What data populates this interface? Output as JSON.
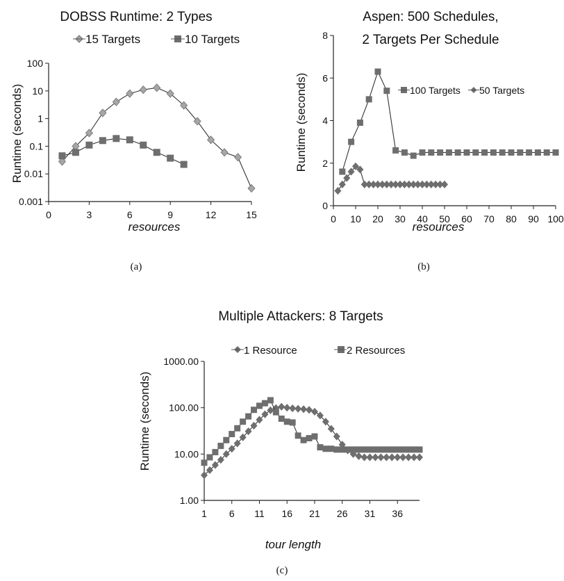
{
  "chart_data": [
    {
      "id": "a",
      "type": "line",
      "title": "DOBSS Runtime: 2 Types",
      "xlabel": "resources",
      "ylabel": "Runtime (seconds)",
      "caption": "(a)",
      "yscale": "log",
      "xlim": [
        0,
        15
      ],
      "ylim": [
        0.001,
        100
      ],
      "xticks": [
        "0",
        "3",
        "6",
        "9",
        "12",
        "15"
      ],
      "yticks": [
        "0.001",
        "0.01",
        "0.1",
        "1",
        "10",
        "100"
      ],
      "legend_position": "top",
      "series": [
        {
          "name": "15 Targets",
          "marker": "diamond",
          "color": "#a6a6a6",
          "x": [
            1,
            2,
            3,
            4,
            5,
            6,
            7,
            8,
            9,
            10,
            11,
            12,
            13,
            14,
            15
          ],
          "y": [
            0.028,
            0.1,
            0.3,
            1.6,
            4,
            8,
            11,
            13,
            8,
            3,
            0.8,
            0.17,
            0.06,
            0.04,
            0.003
          ]
        },
        {
          "name": "10 Targets",
          "marker": "square",
          "color": "#6e6e6e",
          "x": [
            1,
            2,
            3,
            4,
            5,
            6,
            7,
            8,
            9,
            10
          ],
          "y": [
            0.045,
            0.06,
            0.11,
            0.16,
            0.19,
            0.17,
            0.11,
            0.06,
            0.037,
            0.022
          ]
        }
      ]
    },
    {
      "id": "b",
      "type": "line",
      "title": "Aspen: 500 Schedules,",
      "title2": "2 Targets Per Schedule",
      "xlabel": "resources",
      "ylabel": "Runtime  (seconds)",
      "caption": "(b)",
      "yscale": "linear",
      "xlim": [
        0,
        100
      ],
      "ylim": [
        0,
        8
      ],
      "xticks": [
        "0",
        "10",
        "20",
        "30",
        "40",
        "50",
        "60",
        "70",
        "80",
        "90",
        "100"
      ],
      "yticks": [
        "0",
        "2",
        "4",
        "6",
        "8"
      ],
      "legend_position": "center-right",
      "series": [
        {
          "name": "100 Targets",
          "marker": "square",
          "color": "#6e6e6e",
          "x": [
            4,
            8,
            12,
            16,
            20,
            24,
            28,
            32,
            36,
            40,
            44,
            48,
            52,
            56,
            60,
            64,
            68,
            72,
            76,
            80,
            84,
            88,
            92,
            96,
            100
          ],
          "y": [
            1.6,
            3.0,
            3.9,
            5.0,
            6.3,
            5.4,
            2.6,
            2.5,
            2.35,
            2.5,
            2.5,
            2.5,
            2.5,
            2.5,
            2.5,
            2.5,
            2.5,
            2.5,
            2.5,
            2.5,
            2.5,
            2.5,
            2.5,
            2.5,
            2.5
          ]
        },
        {
          "name": "50 Targets",
          "marker": "diamond",
          "color": "#6e6e6e",
          "x": [
            2,
            4,
            6,
            8,
            10,
            12,
            14,
            16,
            18,
            20,
            22,
            24,
            26,
            28,
            30,
            32,
            34,
            36,
            38,
            40,
            42,
            44,
            46,
            48,
            50
          ],
          "y": [
            0.7,
            1.0,
            1.3,
            1.6,
            1.85,
            1.7,
            1.0,
            1.0,
            1.0,
            1.0,
            1.0,
            1.0,
            1.0,
            1.0,
            1.0,
            1.0,
            1.0,
            1.0,
            1.0,
            1.0,
            1.0,
            1.0,
            1.0,
            1.0,
            1.0
          ]
        }
      ]
    },
    {
      "id": "c",
      "type": "line",
      "title": "Multiple Attackers: 8 Targets",
      "xlabel": "tour length",
      "ylabel": "Runtime (seconds)",
      "caption": "(c)",
      "yscale": "log",
      "xlim": [
        1,
        40
      ],
      "ylim": [
        1,
        1000
      ],
      "xticks": [
        "1",
        "6",
        "11",
        "16",
        "21",
        "26",
        "31",
        "36"
      ],
      "yticks": [
        "1.00",
        "10.00",
        "100.00",
        "1000.00"
      ],
      "legend_position": "top",
      "series": [
        {
          "name": "1 Resource",
          "marker": "diamond",
          "color": "#6e6e6e",
          "x": [
            1,
            2,
            3,
            4,
            5,
            6,
            7,
            8,
            9,
            10,
            11,
            12,
            13,
            14,
            15,
            16,
            17,
            18,
            19,
            20,
            21,
            22,
            23,
            24,
            25,
            26,
            27,
            28,
            29,
            30,
            31,
            32,
            33,
            34,
            35,
            36,
            37,
            38,
            39,
            40
          ],
          "y": [
            3.5,
            4.5,
            5.8,
            7.5,
            10,
            13,
            17,
            23,
            31,
            41,
            55,
            72,
            88,
            98,
            105,
            100,
            97,
            95,
            93,
            90,
            82,
            68,
            50,
            35,
            24,
            16,
            12,
            10,
            9,
            8.5,
            8.5,
            8.5,
            8.5,
            8.5,
            8.5,
            8.5,
            8.5,
            8.5,
            8.5,
            8.5
          ]
        },
        {
          "name": "2 Resources",
          "marker": "square",
          "color": "#6e6e6e",
          "x": [
            1,
            2,
            3,
            4,
            5,
            6,
            7,
            8,
            9,
            10,
            11,
            12,
            13,
            14,
            15,
            16,
            17,
            18,
            19,
            20,
            21,
            22,
            23,
            24,
            25,
            26,
            27,
            28,
            29,
            30,
            31,
            32,
            33,
            34,
            35,
            36,
            37,
            38,
            39,
            40
          ],
          "y": [
            6.5,
            8.5,
            11,
            15,
            20,
            27,
            36,
            50,
            65,
            90,
            110,
            125,
            145,
            80,
            58,
            50,
            48,
            25,
            20,
            22,
            24,
            14,
            13,
            13,
            12.5,
            12.5,
            12.5,
            12.5,
            12.5,
            12.5,
            12.5,
            12.5,
            12.5,
            12.5,
            12.5,
            12.5,
            12.5,
            12.5,
            12.5,
            12.5
          ]
        }
      ]
    }
  ]
}
